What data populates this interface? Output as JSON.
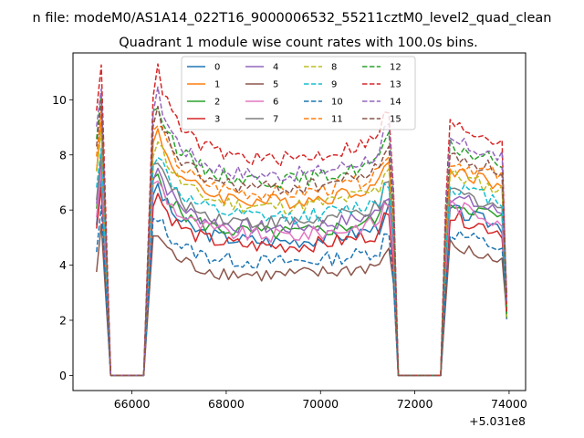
{
  "chart_data": {
    "type": "line",
    "suptitle": "n file: modeM0/AS1A14_022T16_9000006532_55211cztM0_level2_quad_clean",
    "title": "Quadrant 1 module wise count rates with 100.0s bins.",
    "xlabel": "",
    "ylabel": "",
    "x_offset_label": "+5.031e8",
    "xlim": [
      64750,
      74350
    ],
    "ylim": [
      -0.55,
      11.7
    ],
    "xticks": [
      66000,
      68000,
      70000,
      72000,
      74000
    ],
    "yticks": [
      0,
      2,
      4,
      6,
      8,
      10
    ],
    "grid": false,
    "legend": {
      "placement": "top-center",
      "ncol": 4
    },
    "x_segments": [
      {
        "start": 65250,
        "end": 65350,
        "step": 100
      },
      {
        "start": 65550,
        "end": 66250,
        "step": 100
      },
      {
        "start": 66450,
        "end": 71550,
        "step": 100
      },
      {
        "start": 71650,
        "end": 72550,
        "step": 100
      },
      {
        "start": 72650,
        "end": 73950,
        "step": 100
      }
    ],
    "series": [
      {
        "name": "0",
        "color": "#1f77b4",
        "dash": false,
        "level": 5.1
      },
      {
        "name": "1",
        "color": "#ff7f0e",
        "dash": false,
        "level": 6.6
      },
      {
        "name": "2",
        "color": "#2ca02c",
        "dash": false,
        "level": 5.4
      },
      {
        "name": "3",
        "color": "#d62728",
        "dash": false,
        "level": 4.9
      },
      {
        "name": "4",
        "color": "#9467bd",
        "dash": false,
        "level": 5.6
      },
      {
        "name": "5",
        "color": "#8c564b",
        "dash": false,
        "level": 3.8
      },
      {
        "name": "6",
        "color": "#e377c2",
        "dash": false,
        "level": 5.3
      },
      {
        "name": "7",
        "color": "#7f7f7f",
        "dash": false,
        "level": 5.8
      },
      {
        "name": "8",
        "color": "#bcbd22",
        "dash": true,
        "level": 6.4
      },
      {
        "name": "9",
        "color": "#17becf",
        "dash": true,
        "level": 6.0
      },
      {
        "name": "10",
        "color": "#1f77b4",
        "dash": true,
        "level": 4.3
      },
      {
        "name": "11",
        "color": "#ff7f0e",
        "dash": true,
        "level": 6.9
      },
      {
        "name": "12",
        "color": "#2ca02c",
        "dash": true,
        "level": 7.4
      },
      {
        "name": "13",
        "color": "#d62728",
        "dash": true,
        "level": 8.2
      },
      {
        "name": "14",
        "color": "#9467bd",
        "dash": true,
        "level": 7.6
      },
      {
        "name": "15",
        "color": "#8c564b",
        "dash": true,
        "level": 7.1
      }
    ]
  }
}
